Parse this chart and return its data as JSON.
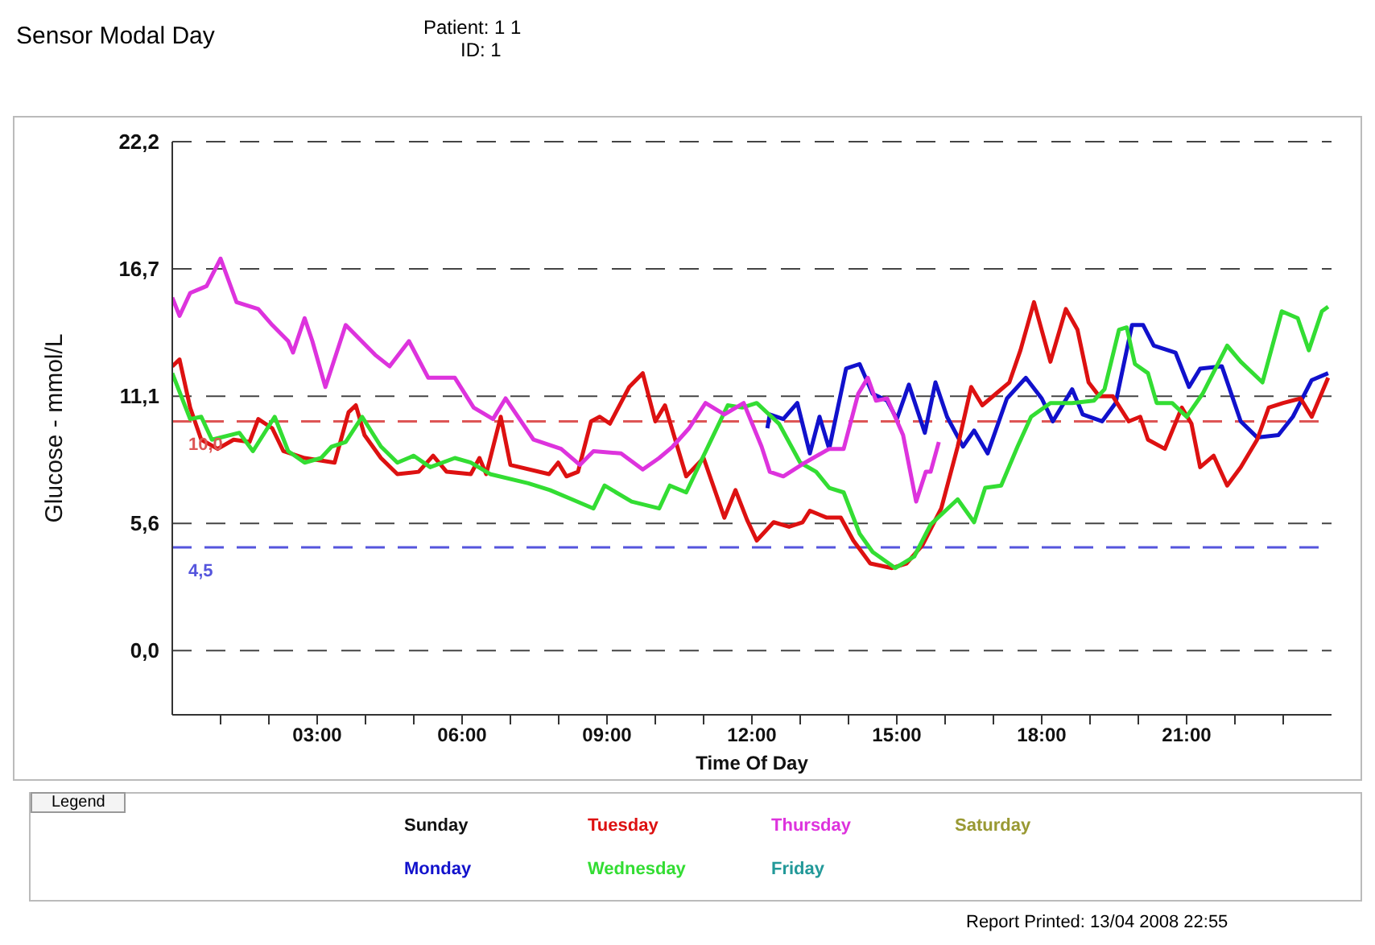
{
  "chart_data": {
    "type": "line",
    "title": "Sensor Modal Day",
    "xlabel": "Time Of Day",
    "ylabel": "Glucose - mmol/L",
    "legend_title": "Legend",
    "annotations": [
      "Patient: 1 1",
      "ID: 1",
      "Report Printed: 13/04 2008  22:55"
    ],
    "xlim": [
      0,
      24
    ],
    "xticks": [
      {
        "value": 1,
        "label": null
      },
      {
        "value": 2,
        "label": null
      },
      {
        "value": 3,
        "label": "03:00"
      },
      {
        "value": 4,
        "label": null
      },
      {
        "value": 5,
        "label": null
      },
      {
        "value": 6,
        "label": "06:00"
      },
      {
        "value": 7,
        "label": null
      },
      {
        "value": 8,
        "label": null
      },
      {
        "value": 9,
        "label": "09:00"
      },
      {
        "value": 10,
        "label": null
      },
      {
        "value": 11,
        "label": null
      },
      {
        "value": 12,
        "label": "12:00"
      },
      {
        "value": 13,
        "label": null
      },
      {
        "value": 14,
        "label": null
      },
      {
        "value": 15,
        "label": "15:00"
      },
      {
        "value": 16,
        "label": null
      },
      {
        "value": 17,
        "label": null
      },
      {
        "value": 18,
        "label": "18:00"
      },
      {
        "value": 19,
        "label": null
      },
      {
        "value": 20,
        "label": null
      },
      {
        "value": 21,
        "label": "21:00"
      },
      {
        "value": 22,
        "label": null
      },
      {
        "value": 23,
        "label": null
      }
    ],
    "ylim": [
      -2.8,
      22.2
    ],
    "yticks": [
      {
        "value": 0,
        "label": "0,0"
      },
      {
        "value": 5.55,
        "label": "5,6"
      },
      {
        "value": 11.1,
        "label": "11,1"
      },
      {
        "value": 16.65,
        "label": "16,7"
      },
      {
        "value": 22.2,
        "label": "22,2"
      }
    ],
    "grid": "y",
    "legend": "bottom",
    "line_style": "solid",
    "ref_lines": [
      {
        "axis": "y",
        "value": 10,
        "label": "10,0",
        "color": "#dd5555",
        "line_style": "dashed"
      },
      {
        "axis": "y",
        "value": 4.5,
        "label": "4,5",
        "color": "#5555dd",
        "line_style": "dashed"
      }
    ],
    "series": [
      {
        "name": "Sunday",
        "color": "#111111"
      },
      {
        "name": "Monday",
        "color": "#1111cc",
        "x": [
          12.32,
          12.37,
          12.65,
          12.94,
          13.2,
          13.4,
          13.6,
          13.95,
          14.23,
          14.5,
          14.8,
          15.0,
          15.25,
          15.58,
          15.8,
          16.04,
          16.37,
          16.6,
          16.88,
          17.28,
          17.67,
          18.0,
          18.23,
          18.63,
          18.85,
          19.25,
          19.53,
          19.87,
          20.1,
          20.32,
          20.77,
          21.05,
          21.28,
          21.73,
          22.12,
          22.46,
          22.9,
          23.2,
          23.59,
          23.93
        ],
        "values": [
          9.7,
          10.3,
          10.1,
          10.8,
          8.6,
          10.2,
          8.8,
          12.3,
          12.5,
          11.2,
          10.9,
          10.1,
          11.6,
          9.5,
          11.7,
          10.2,
          8.9,
          9.6,
          8.6,
          11.0,
          11.9,
          11.0,
          10.0,
          11.4,
          10.3,
          10.0,
          10.8,
          14.2,
          14.2,
          13.3,
          13.0,
          11.5,
          12.3,
          12.4,
          10.0,
          9.3,
          9.4,
          10.2,
          11.8,
          12.1
        ]
      },
      {
        "name": "Tuesday",
        "color": "#dd1111",
        "x": [
          0,
          0.15,
          0.37,
          0.6,
          0.94,
          1.27,
          1.6,
          1.78,
          2.07,
          2.3,
          2.74,
          3.36,
          3.65,
          3.8,
          3.98,
          4.32,
          4.66,
          5.1,
          5.4,
          5.68,
          6.18,
          6.36,
          6.5,
          6.8,
          7.0,
          7.8,
          7.99,
          8.16,
          8.4,
          8.67,
          8.85,
          9.06,
          9.46,
          9.74,
          10.0,
          10.2,
          10.64,
          11.0,
          11.43,
          11.66,
          11.9,
          12.1,
          12.45,
          12.77,
          13.05,
          13.2,
          13.55,
          13.84,
          14.1,
          14.45,
          14.9,
          15.2,
          15.53,
          15.92,
          16.26,
          16.54,
          16.77,
          17.05,
          17.33,
          17.56,
          17.84,
          18.18,
          18.5,
          18.74,
          18.97,
          19.19,
          19.47,
          19.8,
          20.04,
          20.2,
          20.55,
          20.9,
          21.1,
          21.28,
          21.56,
          21.84,
          22.12,
          22.46,
          22.7,
          23.0,
          23.36,
          23.59,
          23.93
        ],
        "values": [
          12.4,
          12.7,
          10.6,
          9.2,
          8.8,
          9.2,
          9.1,
          10.1,
          9.7,
          8.7,
          8.4,
          8.2,
          10.4,
          10.7,
          9.4,
          8.4,
          7.7,
          7.8,
          8.5,
          7.8,
          7.7,
          8.4,
          7.7,
          10.2,
          8.1,
          7.7,
          8.2,
          7.6,
          7.8,
          10.0,
          10.2,
          9.9,
          11.5,
          12.1,
          10.0,
          10.7,
          7.6,
          8.4,
          5.8,
          7.0,
          5.7,
          4.8,
          5.6,
          5.4,
          5.6,
          6.1,
          5.8,
          5.8,
          4.8,
          3.8,
          3.6,
          3.8,
          4.6,
          6.2,
          8.9,
          11.5,
          10.7,
          11.2,
          11.7,
          13.1,
          15.2,
          12.6,
          14.9,
          14.0,
          11.7,
          11.1,
          11.1,
          10.0,
          10.2,
          9.2,
          8.8,
          10.6,
          9.9,
          8.0,
          8.5,
          7.2,
          8.0,
          9.2,
          10.6,
          10.8,
          11.0,
          10.2,
          11.9
        ]
      },
      {
        "name": "Wednesday",
        "color": "#33dd33",
        "x": [
          0,
          0.37,
          0.6,
          0.82,
          1.39,
          1.67,
          2.12,
          2.4,
          2.74,
          3.08,
          3.3,
          3.59,
          3.93,
          4.32,
          4.66,
          5.0,
          5.34,
          5.85,
          6.18,
          6.58,
          7.37,
          7.82,
          8.27,
          8.72,
          8.95,
          9.51,
          10.08,
          10.3,
          10.64,
          11.0,
          11.5,
          11.8,
          12.1,
          12.56,
          13.0,
          13.33,
          13.6,
          13.9,
          14.23,
          14.5,
          14.97,
          15.36,
          15.7,
          16.26,
          16.6,
          16.83,
          17.16,
          17.5,
          17.78,
          18.18,
          18.63,
          19.08,
          19.3,
          19.6,
          19.76,
          19.93,
          20.2,
          20.38,
          20.7,
          21.0,
          21.33,
          21.84,
          22.12,
          22.57,
          22.97,
          23.3,
          23.53,
          23.8,
          23.93
        ],
        "values": [
          12.1,
          10.1,
          10.2,
          9.2,
          9.5,
          8.7,
          10.2,
          8.7,
          8.2,
          8.4,
          8.9,
          9.1,
          10.2,
          8.9,
          8.2,
          8.5,
          8.0,
          8.4,
          8.2,
          7.7,
          7.3,
          7.0,
          6.6,
          6.2,
          7.2,
          6.5,
          6.2,
          7.2,
          6.9,
          8.5,
          10.7,
          10.6,
          10.8,
          9.9,
          8.2,
          7.8,
          7.1,
          6.9,
          5.1,
          4.3,
          3.6,
          4.1,
          5.5,
          6.6,
          5.6,
          7.1,
          7.2,
          8.9,
          10.2,
          10.8,
          10.8,
          10.9,
          11.4,
          14.0,
          14.1,
          12.5,
          12.1,
          10.8,
          10.8,
          10.2,
          11.2,
          13.3,
          12.6,
          11.7,
          14.8,
          14.5,
          13.1,
          14.8,
          15.0
        ]
      },
      {
        "name": "Thursday",
        "color": "#dd33dd",
        "x": [
          0,
          0.15,
          0.37,
          0.71,
          1.0,
          1.33,
          1.78,
          2.07,
          2.4,
          2.5,
          2.74,
          2.9,
          3.17,
          3.59,
          4.2,
          4.5,
          4.9,
          5.3,
          5.85,
          6.24,
          6.64,
          6.9,
          7.48,
          8.05,
          8.44,
          8.72,
          9.29,
          9.74,
          10.08,
          10.36,
          10.7,
          11.04,
          11.43,
          11.83,
          12.2,
          12.37,
          12.65,
          13.1,
          13.6,
          13.9,
          14.2,
          14.4,
          14.57,
          14.8,
          15.13,
          15.4,
          15.6,
          15.7,
          15.87
        ],
        "values": [
          15.4,
          14.6,
          15.6,
          15.9,
          17.1,
          15.2,
          14.9,
          14.2,
          13.5,
          13.0,
          14.5,
          13.5,
          11.5,
          14.2,
          12.9,
          12.4,
          13.5,
          11.9,
          11.9,
          10.6,
          10.1,
          11.0,
          9.2,
          8.8,
          8.1,
          8.7,
          8.6,
          7.9,
          8.4,
          8.9,
          9.7,
          10.8,
          10.3,
          10.8,
          8.9,
          7.8,
          7.6,
          8.2,
          8.8,
          8.8,
          11.2,
          11.9,
          10.9,
          11.0,
          9.4,
          6.5,
          7.8,
          7.8,
          9.1
        ]
      },
      {
        "name": "Friday",
        "color": "#229999"
      },
      {
        "name": "Saturday",
        "color": "#999933"
      }
    ]
  }
}
